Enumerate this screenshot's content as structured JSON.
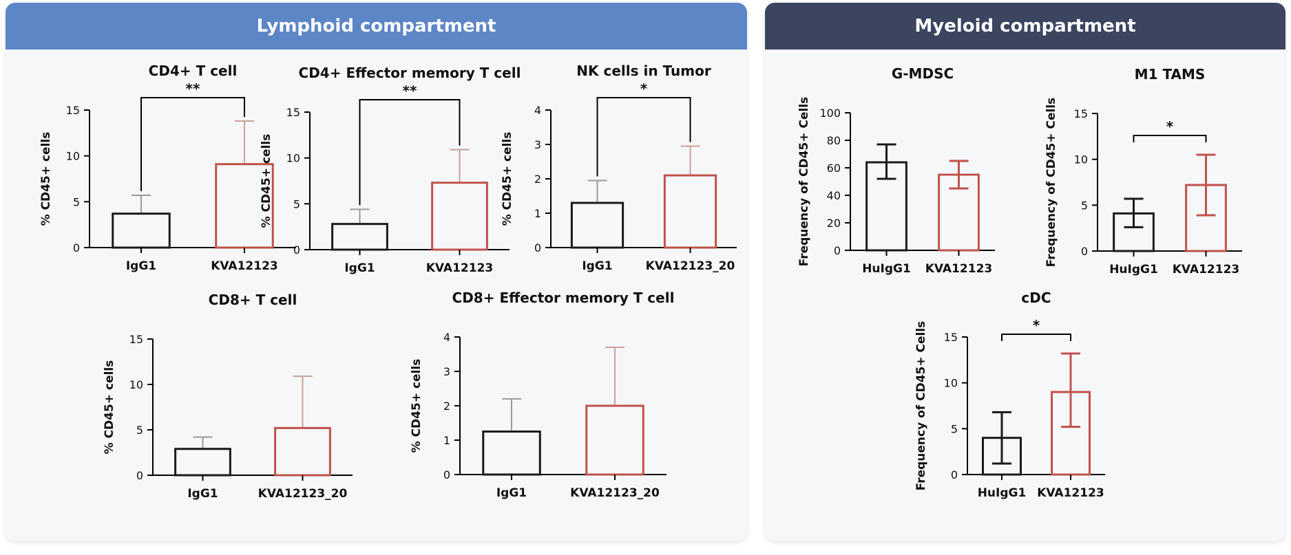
{
  "panels": {
    "lymphoid": {
      "title": "Lymphoid compartment"
    },
    "myeloid": {
      "title": "Myeloid compartment"
    }
  },
  "colors": {
    "control": "#1a1a1a",
    "treated": "#c0524a",
    "lymphoid_header": "#5d86c7",
    "myeloid_header": "#3b4560"
  },
  "chart_data": [
    {
      "id": "c1",
      "type": "bar",
      "title": "CD4+ T cell",
      "ylabel": "% CD45+ cells",
      "categories": [
        "IgG1",
        "KVA12123"
      ],
      "values": [
        3.7,
        9.1
      ],
      "err_upper": [
        5.7,
        13.8
      ],
      "err_lower": [
        null,
        null
      ],
      "ylim": [
        0,
        15
      ],
      "yticks": [
        "0",
        "5",
        "10",
        "15"
      ],
      "significance": "**"
    },
    {
      "id": "c2",
      "type": "bar",
      "title": "CD4+ Effector memory T cell",
      "ylabel": "% CD45+ cells",
      "categories": [
        "IgG1",
        "KVA12123"
      ],
      "values": [
        2.8,
        7.3
      ],
      "err_upper": [
        4.4,
        10.9
      ],
      "err_lower": [
        null,
        null
      ],
      "ylim": [
        0,
        15
      ],
      "yticks": [
        "0",
        "5",
        "10",
        "15"
      ],
      "significance": "**"
    },
    {
      "id": "c3",
      "type": "bar",
      "title": "NK cells in Tumor",
      "ylabel": "% CD45+ cells",
      "categories": [
        "IgG1",
        "KVA12123_20"
      ],
      "values": [
        1.3,
        2.1
      ],
      "err_upper": [
        1.95,
        2.95
      ],
      "err_lower": [
        null,
        null
      ],
      "ylim": [
        0,
        4
      ],
      "yticks": [
        "0",
        "1",
        "2",
        "3",
        "4"
      ],
      "significance": "*"
    },
    {
      "id": "c4",
      "type": "bar",
      "title": "CD8+ T cell",
      "ylabel": "% CD45+ cells",
      "categories": [
        "IgG1",
        "KVA12123_20"
      ],
      "values": [
        2.9,
        5.2
      ],
      "err_upper": [
        4.2,
        10.9
      ],
      "err_lower": [
        null,
        null
      ],
      "ylim": [
        0,
        15
      ],
      "yticks": [
        "0",
        "5",
        "10",
        "15"
      ],
      "significance": ""
    },
    {
      "id": "c5",
      "type": "bar",
      "title": "CD8+ Effector memory T cell",
      "ylabel": "% CD45+ cells",
      "categories": [
        "IgG1",
        "KVA12123_20"
      ],
      "values": [
        1.25,
        2.0
      ],
      "err_upper": [
        2.2,
        3.7
      ],
      "err_lower": [
        null,
        null
      ],
      "ylim": [
        0,
        4
      ],
      "yticks": [
        "0",
        "1",
        "2",
        "3",
        "4"
      ],
      "significance": ""
    },
    {
      "id": "c6",
      "type": "bar",
      "title": "G-MDSC",
      "ylabel": "Frequency of CD45+ Cells",
      "categories": [
        "HuIgG1",
        "KVA12123"
      ],
      "values": [
        64,
        55
      ],
      "err_upper": [
        77,
        65
      ],
      "err_lower": [
        52,
        45
      ],
      "ylim": [
        0,
        100
      ],
      "yticks": [
        "0",
        "20",
        "40",
        "60",
        "80",
        "100"
      ],
      "significance": ""
    },
    {
      "id": "c7",
      "type": "bar",
      "title": "M1 TAMS",
      "ylabel": "Frequency of CD45+ Cells",
      "categories": [
        "HuIgG1",
        "KVA12123"
      ],
      "values": [
        4.1,
        7.2
      ],
      "err_upper": [
        5.7,
        10.5
      ],
      "err_lower": [
        2.6,
        3.9
      ],
      "ylim": [
        0,
        15
      ],
      "yticks": [
        "0",
        "5",
        "10",
        "15"
      ],
      "significance": "*"
    },
    {
      "id": "c8",
      "type": "bar",
      "title": "cDC",
      "ylabel": "Frequency of CD45+ Cells",
      "categories": [
        "HuIgG1",
        "KVA12123"
      ],
      "values": [
        4.0,
        9.0
      ],
      "err_upper": [
        6.8,
        13.2
      ],
      "err_lower": [
        1.2,
        5.2
      ],
      "ylim": [
        0,
        15
      ],
      "yticks": [
        "0",
        "5",
        "10",
        "15"
      ],
      "significance": "*"
    }
  ]
}
